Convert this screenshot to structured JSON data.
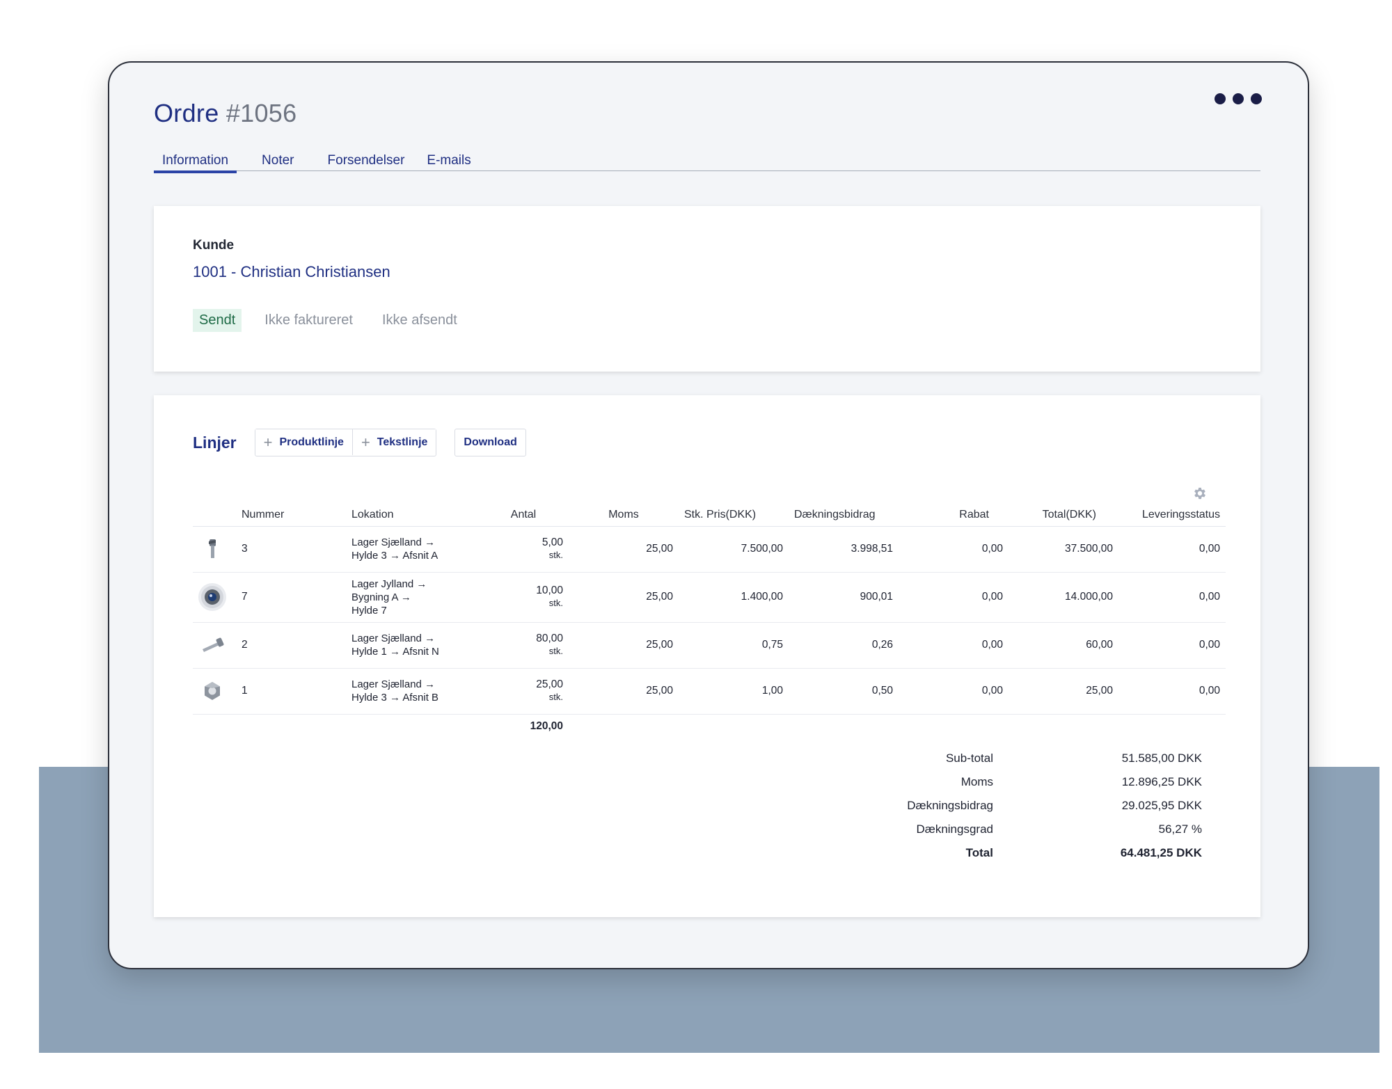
{
  "header": {
    "title_prefix": "Ordre",
    "title_number": "#1056"
  },
  "tabs": [
    {
      "label": "Information",
      "active": true
    },
    {
      "label": "Noter"
    },
    {
      "label": "Forsendelser"
    },
    {
      "label": "E-mails"
    }
  ],
  "customer": {
    "label": "Kunde",
    "value": "1001 - Christian Christiansen"
  },
  "statuses": {
    "sent": "Sendt",
    "invoiced": "Ikke faktureret",
    "shipped": "Ikke afsendt"
  },
  "lines": {
    "title": "Linjer",
    "add_product_label": "Produktlinje",
    "add_text_label": "Tekstlinje",
    "download_label": "Download",
    "columns": {
      "number": "Nummer",
      "location": "Lokation",
      "quantity": "Antal",
      "vat": "Moms",
      "unit_price": "Stk. Pris(DKK)",
      "contribution": "Dækningsbidrag",
      "discount": "Rabat",
      "total": "Total(DKK)",
      "delivery": "Leveringsstatus"
    },
    "rows": [
      {
        "thumb": "bolt-icon",
        "number": "3",
        "location_1": "Lager Sjælland  →",
        "location_2": "Hylde 3  →  Afsnit A",
        "location_3": "",
        "quantity": "5,00",
        "unit": "stk.",
        "vat": "25,00",
        "unit_price": "7.500,00",
        "contribution": "3.998,51",
        "discount": "0,00",
        "total": "37.500,00",
        "delivery": "0,00"
      },
      {
        "thumb": "camera-lens-icon",
        "number": "7",
        "location_1": "Lager Jylland  →",
        "location_2": "Bygning A  →",
        "location_3": "Hylde 7",
        "quantity": "10,00",
        "unit": "stk.",
        "vat": "25,00",
        "unit_price": "1.400,00",
        "contribution": "900,01",
        "discount": "0,00",
        "total": "14.000,00",
        "delivery": "0,00"
      },
      {
        "thumb": "screw-icon",
        "number": "2",
        "location_1": "Lager Sjælland  →",
        "location_2": "Hylde 1  →  Afsnit N",
        "location_3": "",
        "quantity": "80,00",
        "unit": "stk.",
        "vat": "25,00",
        "unit_price": "0,75",
        "contribution": "0,26",
        "discount": "0,00",
        "total": "60,00",
        "delivery": "0,00"
      },
      {
        "thumb": "nut-icon",
        "number": "1",
        "location_1": "Lager Sjælland  →",
        "location_2": "Hylde 3  →  Afsnit B",
        "location_3": "",
        "quantity": "25,00",
        "unit": "stk.",
        "vat": "25,00",
        "unit_price": "1,00",
        "contribution": "0,50",
        "discount": "0,00",
        "total": "25,00",
        "delivery": "0,00"
      }
    ],
    "quantity_sum": "120,00"
  },
  "totals": [
    {
      "label": "Sub-total",
      "value": "51.585,00 DKK"
    },
    {
      "label": "Moms",
      "value": "12.896,25 DKK"
    },
    {
      "label": "Dækningsbidrag",
      "value": "29.025,95 DKK"
    },
    {
      "label": "Dækningsgrad",
      "value": "56,27 %"
    },
    {
      "label": "Total",
      "value": "64.481,25 DKK",
      "bold": true
    }
  ],
  "colors": {
    "accent": "#1f2f82",
    "backdrop": "#8da2b7",
    "sent_bg": "#e3f4ec"
  }
}
